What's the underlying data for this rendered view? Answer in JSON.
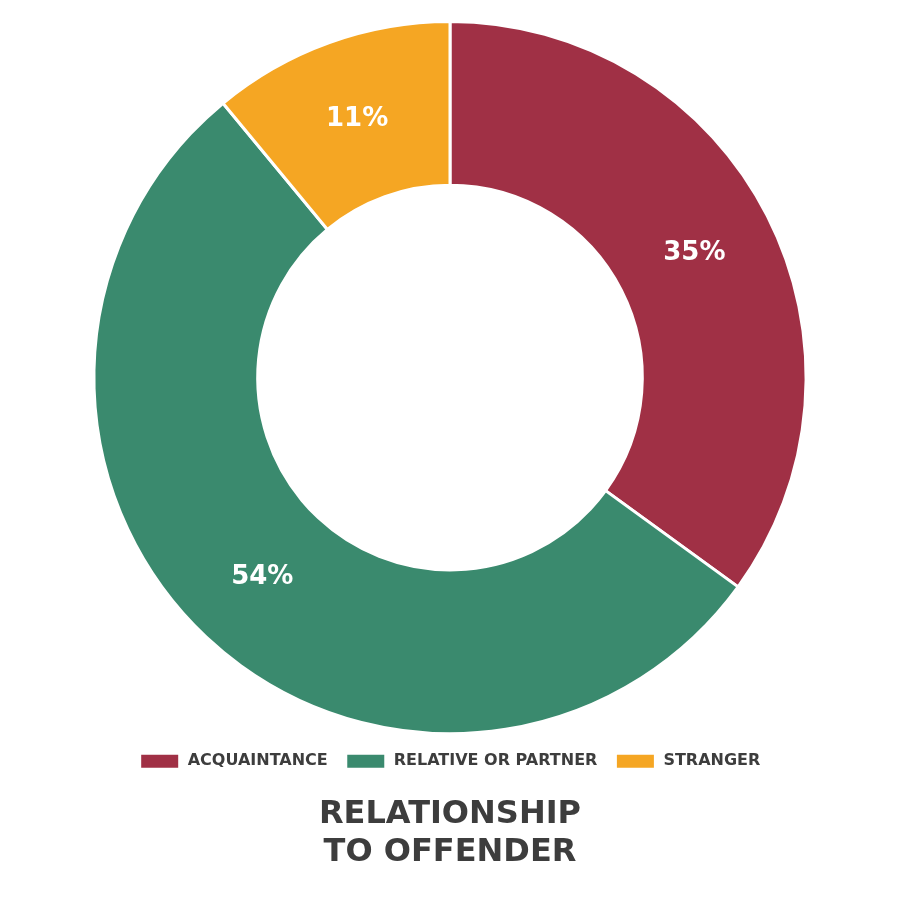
{
  "chart_data": {
    "type": "pie",
    "title": [
      "RELATIONSHIP",
      "TO OFFENDER"
    ],
    "categories": [
      "ACQUAINTANCE",
      "RELATIVE OR PARTNER",
      "STRANGER"
    ],
    "values": [
      35,
      54,
      11
    ],
    "value_labels": [
      "35%",
      "54%",
      "11%"
    ],
    "colors": [
      "#a03045",
      "#3a8a6e",
      "#f5a623"
    ],
    "data_labels": true,
    "legend": "bottom"
  }
}
